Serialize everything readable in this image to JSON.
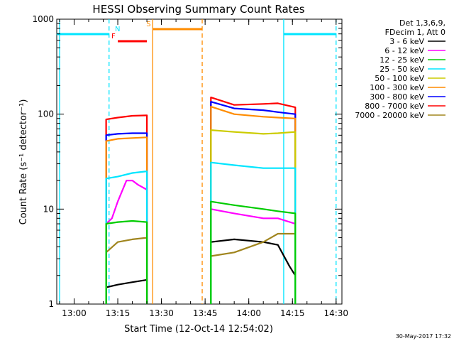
{
  "chart_data": {
    "type": "line",
    "title": "HESSI Observing Summary Count Rates",
    "xlabel": "Start Time (12-Oct-14 12:54:02)",
    "ylabel": "Count Rate (s⁻¹ detector⁻¹)",
    "y_scale": "log",
    "ylim": [
      1,
      1000
    ],
    "xlim": [
      "12:54:02",
      "14:32:00"
    ],
    "x_ticks": [
      "13:00",
      "13:15",
      "13:30",
      "13:45",
      "14:00",
      "14:15",
      "14:30"
    ],
    "y_ticks": [
      "1",
      "10",
      "100",
      "1000"
    ],
    "grid": false,
    "legend_position": "right",
    "detector_info": [
      "Det 1,3,6,9,",
      "FDecim 1, Att 0"
    ],
    "series": [
      {
        "name": "3 - 6 keV",
        "color": "#000000",
        "x": [
          "13:11",
          "13:15",
          "13:20",
          "13:25",
          "13:47",
          "13:55",
          "14:05",
          "14:10",
          "14:14",
          "14:16"
        ],
        "values": [
          1.5,
          1.6,
          1.7,
          1.8,
          4.5,
          4.8,
          4.5,
          4.2,
          2.5,
          2.0
        ]
      },
      {
        "name": "6 - 12 keV",
        "color": "#ff00ff",
        "x": [
          "13:11",
          "13:13",
          "13:15",
          "13:18",
          "13:20",
          "13:22",
          "13:25",
          "13:47",
          "13:55",
          "14:05",
          "14:10",
          "14:16"
        ],
        "values": [
          7,
          8,
          12,
          20,
          20,
          18,
          16,
          10,
          9,
          8,
          8,
          7
        ]
      },
      {
        "name": "12 - 25 keV",
        "color": "#00cc00",
        "x": [
          "13:11",
          "13:15",
          "13:20",
          "13:25",
          "13:47",
          "13:55",
          "14:05",
          "14:10",
          "14:16"
        ],
        "values": [
          7,
          7.3,
          7.5,
          7.3,
          12,
          11,
          10,
          9.5,
          9
        ]
      },
      {
        "name": "25 - 50 keV",
        "color": "#00e5ff",
        "x": [
          "13:11",
          "13:15",
          "13:20",
          "13:25",
          "13:47",
          "13:55",
          "14:05",
          "14:10",
          "14:16"
        ],
        "values": [
          21,
          22,
          24,
          25,
          31,
          29,
          27,
          27,
          27
        ]
      },
      {
        "name": "50 - 100 keV",
        "color": "#cccc00",
        "x": [
          "13:47",
          "13:55",
          "14:05",
          "14:10",
          "14:16"
        ],
        "values": [
          68,
          65,
          62,
          63,
          65
        ]
      },
      {
        "name": "100 - 300 keV",
        "color": "#ff8c00",
        "x": [
          "13:11",
          "13:15",
          "13:20",
          "13:25",
          "13:47",
          "13:55",
          "14:05",
          "14:10",
          "14:16"
        ],
        "values": [
          52,
          55,
          56,
          57,
          120,
          100,
          94,
          92,
          90
        ]
      },
      {
        "name": "300 - 800 keV",
        "color": "#0000ff",
        "x": [
          "13:11",
          "13:15",
          "13:20",
          "13:25",
          "13:47",
          "13:55",
          "14:05",
          "14:10",
          "14:16"
        ],
        "values": [
          60,
          62,
          63,
          63,
          135,
          115,
          110,
          105,
          100
        ]
      },
      {
        "name": "800 - 7000 keV",
        "color": "#ff0000",
        "x": [
          "13:11",
          "13:15",
          "13:20",
          "13:25",
          "13:47",
          "13:55",
          "14:05",
          "14:10",
          "14:16"
        ],
        "values": [
          88,
          92,
          96,
          97,
          150,
          125,
          128,
          130,
          118
        ]
      },
      {
        "name": "7000 - 20000 keV",
        "color": "#a0851e",
        "x": [
          "13:11",
          "13:15",
          "13:20",
          "13:25",
          "13:47",
          "13:55",
          "14:05",
          "14:10",
          "14:16"
        ],
        "values": [
          3.5,
          4.5,
          4.8,
          5.0,
          3.2,
          3.5,
          4.5,
          5.5,
          5.5
        ]
      }
    ],
    "flags": [
      {
        "label": "F",
        "color": "#ff0000",
        "start": "13:15",
        "end": "13:25"
      },
      {
        "label": "N",
        "color": "#00e5ff",
        "start": "12:54",
        "end": "13:12"
      },
      {
        "label": "N",
        "color": "#00e5ff",
        "start": "14:12",
        "end": "14:30"
      },
      {
        "label": "S",
        "color": "#ff8c00",
        "start": "13:27",
        "end": "13:44"
      }
    ],
    "vertical_markers": [
      {
        "time": "12:55",
        "color": "#00e5ff",
        "style": "solid"
      },
      {
        "time": "13:12",
        "color": "#00e5ff",
        "style": "dashed"
      },
      {
        "time": "13:27",
        "color": "#ff8c00",
        "style": "solid"
      },
      {
        "time": "13:44",
        "color": "#ff8c00",
        "style": "dashed"
      },
      {
        "time": "14:12",
        "color": "#00e5ff",
        "style": "solid"
      },
      {
        "time": "14:30",
        "color": "#00e5ff",
        "style": "dashed"
      }
    ]
  },
  "footer": {
    "timestamp": "30-May-2017 17:32"
  }
}
